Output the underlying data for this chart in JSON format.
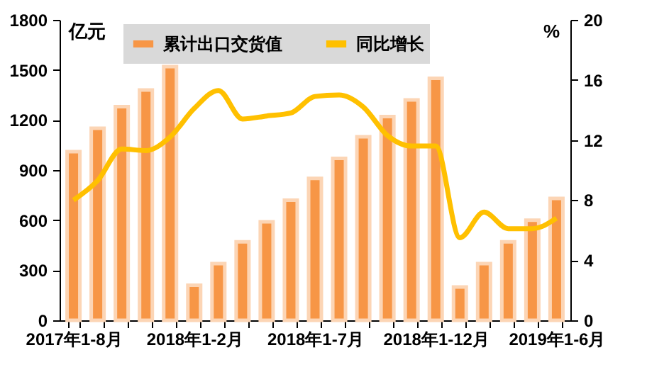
{
  "chart_data": {
    "type": "bar",
    "ylabel": "亿元",
    "y2label": "%",
    "categories": [
      "2017年1-8月",
      null,
      null,
      null,
      null,
      "2018年1-2月",
      null,
      null,
      null,
      null,
      "2018年1-7月",
      null,
      null,
      null,
      null,
      "2018年1-12月",
      null,
      null,
      null,
      null,
      "2019年1-6月"
    ],
    "series": [
      {
        "name": "累计出口交货值",
        "color": "#f79646",
        "values": [
          1010,
          1150,
          1280,
          1380,
          1520,
          210,
          340,
          470,
          590,
          720,
          850,
          970,
          1100,
          1220,
          1320,
          1450,
          200,
          340,
          470,
          600,
          730
        ]
      },
      {
        "name": "同比增长",
        "type": "line",
        "axis": "y2",
        "color": "#ffc000",
        "values": [
          8.0,
          9.3,
          11.4,
          11.3,
          12.2,
          14.1,
          15.3,
          13.4,
          13.6,
          13.8,
          14.9,
          15.0,
          14.2,
          12.3,
          11.6,
          11.6,
          5.5,
          7.2,
          6.1,
          6.1,
          6.8
        ]
      }
    ],
    "ylim": [
      0,
      1800
    ],
    "yticks": [
      0,
      300,
      600,
      900,
      1200,
      1500,
      1800
    ],
    "y2lim": [
      0,
      20
    ],
    "y2ticks": [
      0,
      4,
      8,
      12,
      16,
      20
    ],
    "legend": "top",
    "grid": false,
    "marker": "none"
  }
}
